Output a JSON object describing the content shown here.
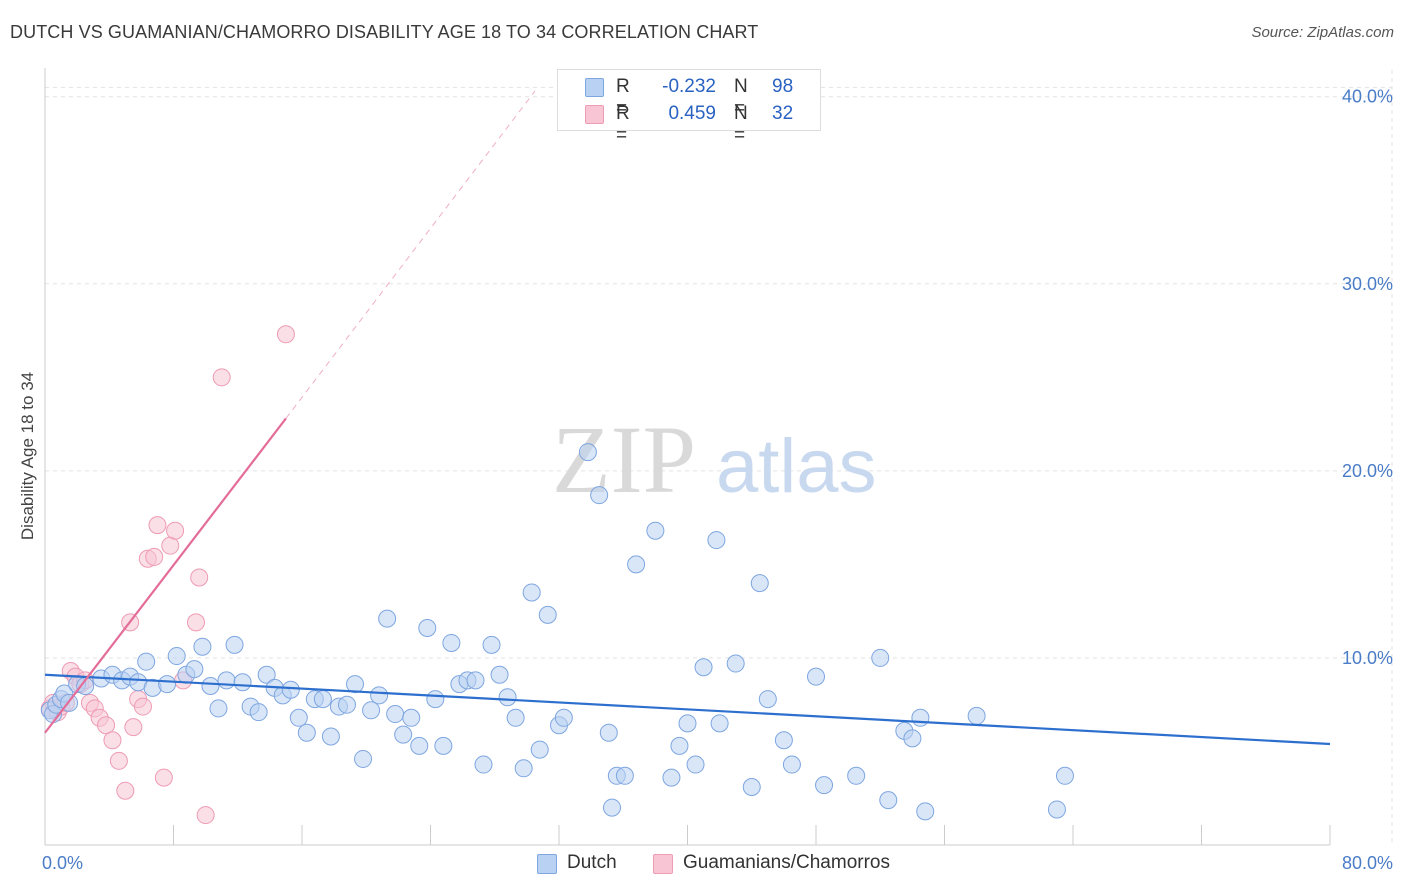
{
  "header": {
    "title": "DUTCH VS GUAMANIAN/CHAMORRO DISABILITY AGE 18 TO 34 CORRELATION CHART",
    "source": "Source: ZipAtlas.com"
  },
  "watermark": {
    "zip": "ZIP",
    "atlas": "atlas"
  },
  "legend": {
    "rows": [
      {
        "r_label": "R =",
        "r_value": "-0.232",
        "n_label": "N =",
        "n_value": "98"
      },
      {
        "r_label": "R =",
        "r_value": "0.459",
        "n_label": "N =",
        "n_value": "32"
      }
    ]
  },
  "bottom_legend": {
    "dutch": "Dutch",
    "guam": "Guamanians/Chamorros"
  },
  "colors": {
    "dutch_fill": "#b9d1f3",
    "dutch_stroke": "#7ea6e0",
    "dutch_line": "#2d6fce",
    "guam_fill": "#f8c5d4",
    "guam_stroke": "#ee9bb4",
    "guam_line": "#e46c98",
    "grid": "#e3e3e3",
    "tick_text": "#4a7cc7"
  },
  "chart_data": {
    "type": "scatter",
    "title": "DUTCH VS GUAMANIAN/CHAMORRO DISABILITY AGE 18 TO 34 CORRELATION CHART",
    "ylabel": "Disability Age 18 to 34",
    "xlabel": "",
    "xlim": [
      0,
      80
    ],
    "ylim": [
      0,
      41
    ],
    "x_tick_labels": [
      {
        "value": 0,
        "label": "0.0%"
      },
      {
        "value": 80,
        "label": "80.0%"
      }
    ],
    "y_tick_labels": [
      {
        "value": 10,
        "label": "10.0%"
      },
      {
        "value": 20,
        "label": "20.0%"
      },
      {
        "value": 30,
        "label": "30.0%"
      },
      {
        "value": 40,
        "label": "40.0%"
      }
    ],
    "grid": true,
    "legend_position": "top-center",
    "series": [
      {
        "name": "Dutch",
        "r": -0.232,
        "n": 98,
        "trend": {
          "x0": 0,
          "y0": 9.1,
          "x1": 80,
          "y1": 5.4
        },
        "points": [
          [
            0.3,
            7.2
          ],
          [
            0.5,
            7.0
          ],
          [
            0.7,
            7.5
          ],
          [
            1.0,
            7.8
          ],
          [
            1.2,
            8.1
          ],
          [
            1.5,
            7.6
          ],
          [
            2.0,
            8.6
          ],
          [
            2.5,
            8.5
          ],
          [
            3.5,
            8.9
          ],
          [
            4.2,
            9.1
          ],
          [
            4.8,
            8.8
          ],
          [
            5.3,
            9.0
          ],
          [
            5.8,
            8.7
          ],
          [
            6.3,
            9.8
          ],
          [
            6.7,
            8.4
          ],
          [
            7.6,
            8.6
          ],
          [
            8.2,
            10.1
          ],
          [
            8.8,
            9.1
          ],
          [
            9.3,
            9.4
          ],
          [
            9.8,
            10.6
          ],
          [
            10.3,
            8.5
          ],
          [
            10.8,
            7.3
          ],
          [
            11.3,
            8.8
          ],
          [
            11.8,
            10.7
          ],
          [
            12.3,
            8.7
          ],
          [
            12.8,
            7.4
          ],
          [
            13.3,
            7.1
          ],
          [
            13.8,
            9.1
          ],
          [
            14.3,
            8.4
          ],
          [
            14.8,
            8.0
          ],
          [
            15.3,
            8.3
          ],
          [
            15.8,
            6.8
          ],
          [
            16.3,
            6.0
          ],
          [
            16.8,
            7.8
          ],
          [
            17.3,
            7.8
          ],
          [
            17.8,
            5.8
          ],
          [
            18.3,
            7.4
          ],
          [
            18.8,
            7.5
          ],
          [
            19.3,
            8.6
          ],
          [
            19.8,
            4.6
          ],
          [
            20.3,
            7.2
          ],
          [
            20.8,
            8.0
          ],
          [
            21.3,
            12.1
          ],
          [
            21.8,
            7.0
          ],
          [
            22.3,
            5.9
          ],
          [
            22.8,
            6.8
          ],
          [
            23.3,
            5.3
          ],
          [
            23.8,
            11.6
          ],
          [
            24.3,
            7.8
          ],
          [
            24.8,
            5.3
          ],
          [
            25.3,
            10.8
          ],
          [
            25.8,
            8.6
          ],
          [
            26.3,
            8.8
          ],
          [
            26.8,
            8.8
          ],
          [
            27.3,
            4.3
          ],
          [
            27.8,
            10.7
          ],
          [
            28.3,
            9.1
          ],
          [
            28.8,
            7.9
          ],
          [
            29.3,
            6.8
          ],
          [
            29.8,
            4.1
          ],
          [
            30.3,
            13.5
          ],
          [
            30.8,
            5.1
          ],
          [
            31.3,
            12.3
          ],
          [
            32.0,
            6.4
          ],
          [
            32.3,
            6.8
          ],
          [
            33.8,
            21.0
          ],
          [
            34.5,
            18.7
          ],
          [
            35.1,
            6.0
          ],
          [
            35.3,
            2.0
          ],
          [
            35.6,
            3.7
          ],
          [
            36.1,
            3.7
          ],
          [
            36.8,
            15.0
          ],
          [
            38.0,
            16.8
          ],
          [
            39.0,
            3.6
          ],
          [
            39.5,
            5.3
          ],
          [
            40.0,
            6.5
          ],
          [
            40.5,
            4.3
          ],
          [
            41.0,
            9.5
          ],
          [
            41.8,
            16.3
          ],
          [
            42.0,
            6.5
          ],
          [
            43.0,
            9.7
          ],
          [
            44.0,
            3.1
          ],
          [
            44.5,
            14.0
          ],
          [
            45.0,
            7.8
          ],
          [
            46.0,
            5.6
          ],
          [
            46.5,
            4.3
          ],
          [
            48.0,
            9.0
          ],
          [
            48.5,
            3.2
          ],
          [
            50.5,
            3.7
          ],
          [
            52.0,
            10.0
          ],
          [
            52.5,
            2.4
          ],
          [
            53.5,
            6.1
          ],
          [
            54.0,
            5.7
          ],
          [
            54.5,
            6.8
          ],
          [
            54.8,
            1.8
          ],
          [
            58.0,
            6.9
          ],
          [
            63.0,
            1.9
          ],
          [
            63.5,
            3.7
          ]
        ]
      },
      {
        "name": "Guamanians/Chamorros",
        "r": 0.459,
        "n": 32,
        "trend": {
          "x0": 0,
          "y0": 6.0,
          "x1": 15.0,
          "y1": 22.8
        },
        "trend_ext": {
          "x0": 15.0,
          "y0": 22.8,
          "x1": 30.5,
          "y1": 40.3
        },
        "points": [
          [
            0.3,
            7.3
          ],
          [
            0.5,
            7.6
          ],
          [
            0.8,
            7.1
          ],
          [
            1.0,
            7.4
          ],
          [
            1.3,
            7.6
          ],
          [
            1.6,
            9.3
          ],
          [
            1.9,
            9.0
          ],
          [
            2.2,
            8.6
          ],
          [
            2.5,
            8.8
          ],
          [
            2.8,
            7.6
          ],
          [
            3.1,
            7.3
          ],
          [
            3.4,
            6.8
          ],
          [
            3.8,
            6.4
          ],
          [
            4.2,
            5.6
          ],
          [
            4.6,
            4.5
          ],
          [
            5.0,
            2.9
          ],
          [
            5.3,
            11.9
          ],
          [
            5.5,
            6.3
          ],
          [
            5.8,
            7.8
          ],
          [
            6.1,
            7.4
          ],
          [
            6.4,
            15.3
          ],
          [
            6.8,
            15.4
          ],
          [
            7.0,
            17.1
          ],
          [
            7.4,
            3.6
          ],
          [
            7.8,
            16.0
          ],
          [
            8.1,
            16.8
          ],
          [
            8.6,
            8.8
          ],
          [
            9.4,
            11.9
          ],
          [
            9.6,
            14.3
          ],
          [
            10.0,
            1.6
          ],
          [
            11.0,
            25.0
          ],
          [
            15.0,
            27.3
          ]
        ]
      }
    ]
  }
}
